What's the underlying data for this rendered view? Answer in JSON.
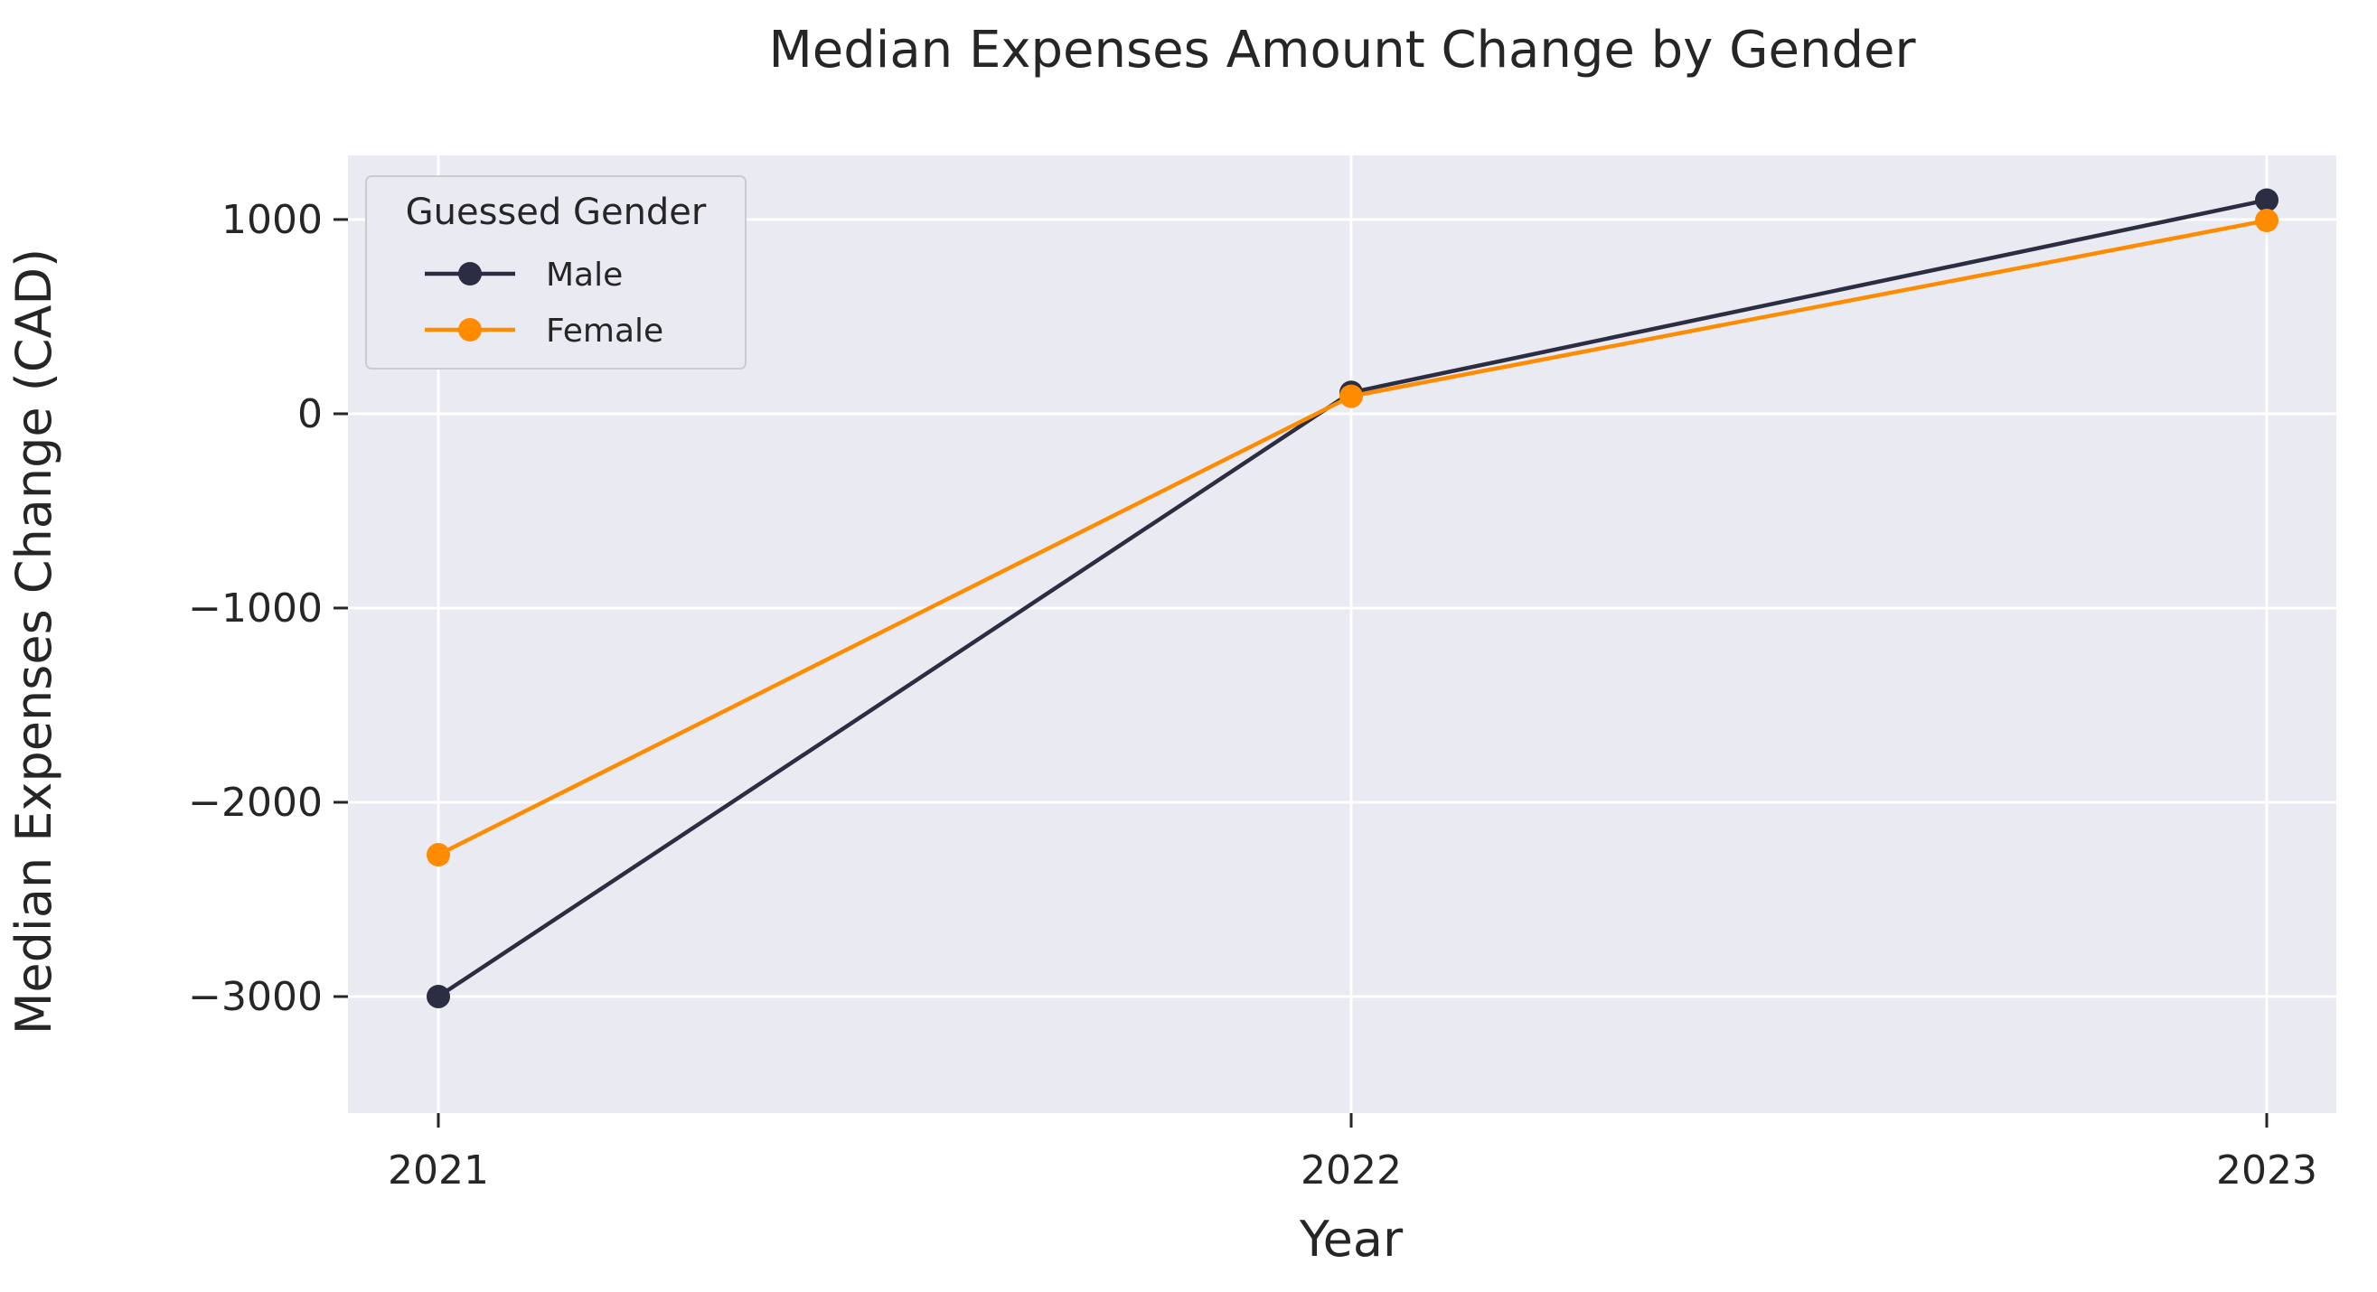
{
  "chart_data": {
    "type": "line",
    "title": "Median Expenses Amount Change by Gender",
    "xlabel": "Year",
    "ylabel": "Median Expenses Change (CAD)",
    "x": [
      "2021",
      "2022",
      "2023"
    ],
    "ylim": [
      -3600,
      1330
    ],
    "yticks": [
      -3000,
      -2000,
      -1000,
      0,
      1000
    ],
    "ytick_labels": [
      "−3000",
      "−2000",
      "−1000",
      "0",
      "1000"
    ],
    "grid": true,
    "legend": {
      "title": "Guessed Gender",
      "placement": "top-left"
    },
    "series": [
      {
        "name": "Male",
        "color": "#2b2d42",
        "values": [
          -3000,
          110,
          1100
        ]
      },
      {
        "name": "Female",
        "color": "#ff8c00",
        "values": [
          -2270,
          90,
          995
        ]
      }
    ]
  }
}
